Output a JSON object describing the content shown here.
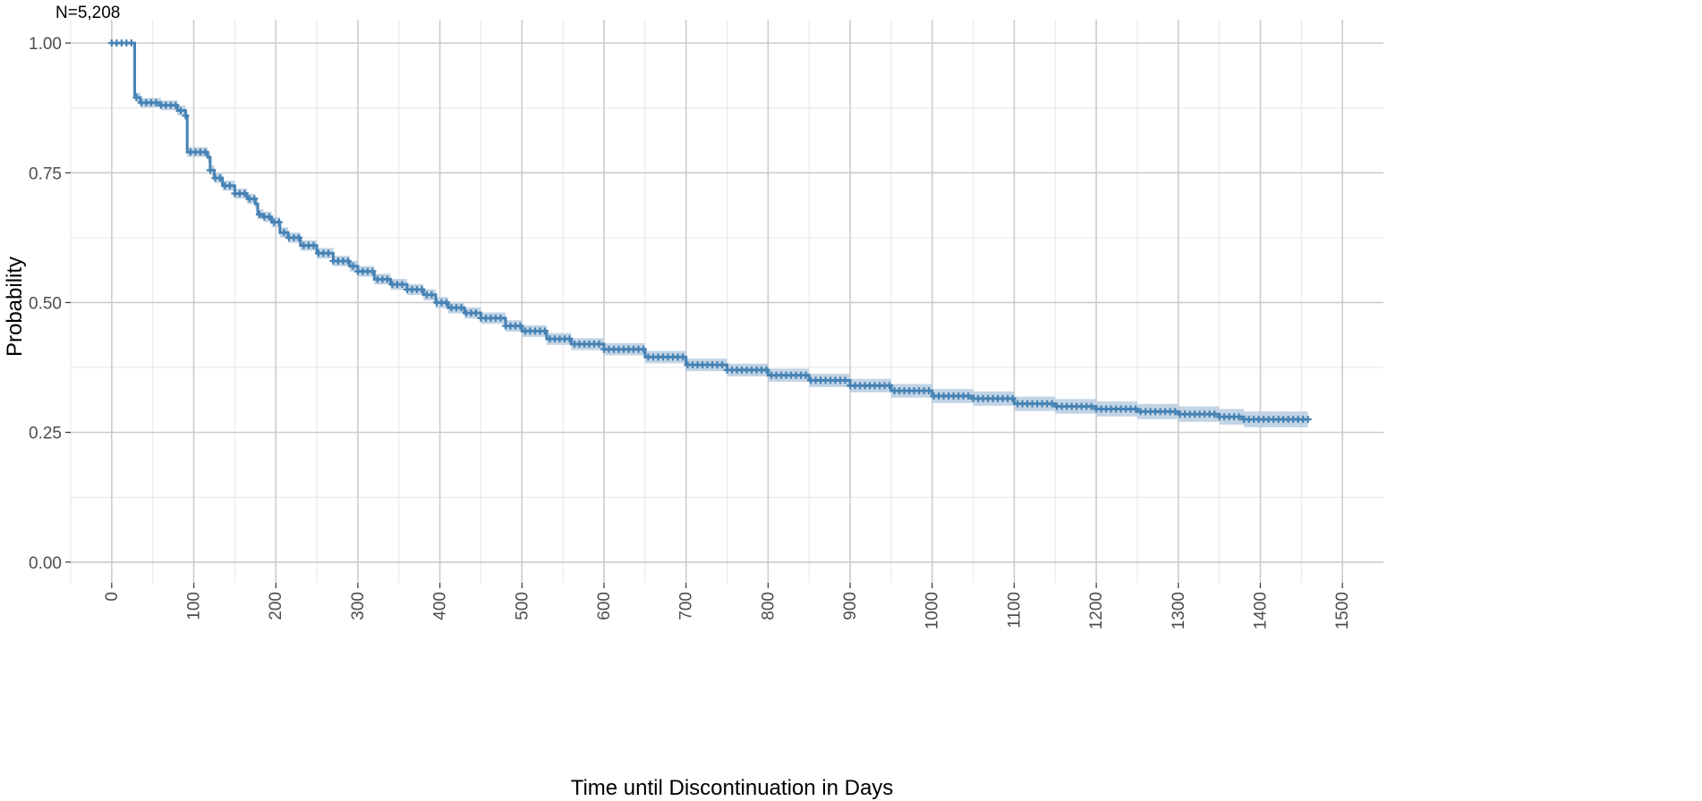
{
  "chart_data": {
    "type": "line",
    "annotation": "N=5,208",
    "xlabel": "Time until Discontinuation in Days",
    "ylabel": "Probability",
    "xlim": [
      -50,
      1550
    ],
    "ylim": [
      -0.04,
      1.045
    ],
    "x_ticks": [
      0,
      100,
      200,
      300,
      400,
      500,
      600,
      700,
      800,
      900,
      1000,
      1100,
      1200,
      1300,
      1400,
      1500
    ],
    "x_tick_labels": [
      "0",
      "100",
      "200",
      "300",
      "400",
      "500",
      "600",
      "700",
      "800",
      "900",
      "1000",
      "1100",
      "1200",
      "1300",
      "1400",
      "1500"
    ],
    "y_ticks": [
      0,
      0.25,
      0.5,
      0.75,
      1.0
    ],
    "y_tick_labels": [
      "0.00",
      "0.25",
      "0.50",
      "0.75",
      "1.00"
    ],
    "grid": true,
    "legend": "none",
    "series": [
      {
        "kind": "step",
        "color": "#4682B4",
        "ci_color": "#B7CCE0",
        "x": [
          0,
          28,
          30,
          35,
          60,
          80,
          90,
          92,
          117,
          120,
          125,
          135,
          150,
          165,
          175,
          178,
          185,
          195,
          205,
          215,
          230,
          250,
          270,
          290,
          300,
          320,
          340,
          360,
          380,
          395,
          410,
          430,
          450,
          480,
          500,
          530,
          560,
          600,
          650,
          700,
          750,
          800,
          850,
          900,
          950,
          1000,
          1050,
          1100,
          1150,
          1200,
          1250,
          1300,
          1350,
          1380,
          1400,
          1458
        ],
        "y": [
          1.0,
          0.9,
          0.895,
          0.885,
          0.88,
          0.87,
          0.86,
          0.79,
          0.78,
          0.755,
          0.74,
          0.725,
          0.71,
          0.7,
          0.69,
          0.67,
          0.665,
          0.655,
          0.635,
          0.625,
          0.61,
          0.595,
          0.58,
          0.57,
          0.56,
          0.545,
          0.535,
          0.525,
          0.515,
          0.5,
          0.49,
          0.48,
          0.47,
          0.455,
          0.445,
          0.43,
          0.42,
          0.41,
          0.395,
          0.38,
          0.37,
          0.36,
          0.35,
          0.34,
          0.33,
          0.32,
          0.315,
          0.305,
          0.3,
          0.295,
          0.29,
          0.285,
          0.28,
          0.275,
          0.275,
          0.275
        ],
        "ci_half_width": 0.009
      }
    ]
  }
}
